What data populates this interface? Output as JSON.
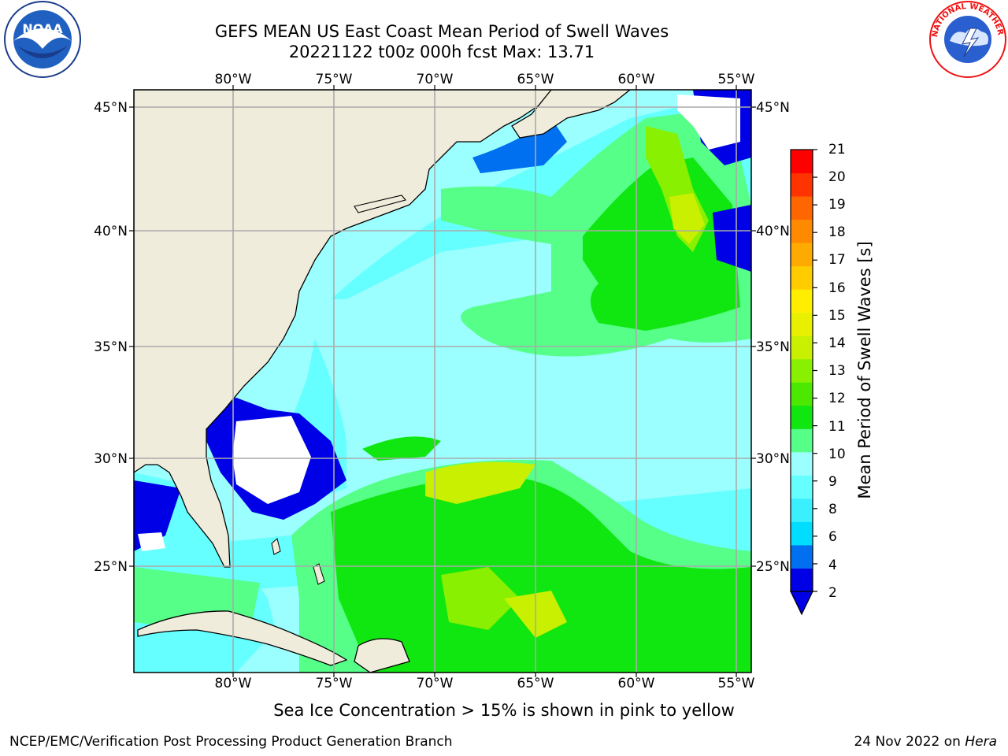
{
  "header": {
    "title_line1": "GEFS MEAN US East Coast Mean Period of Swell Waves",
    "title_line2": "20221122 t00z 000h fcst   Max: 13.71"
  },
  "map": {
    "lon_ticks": [
      "80°W",
      "75°W",
      "70°W",
      "65°W",
      "60°W",
      "55°W"
    ],
    "lat_ticks": [
      "45°N",
      "40°N",
      "35°N",
      "30°N",
      "25°N"
    ],
    "land_color": "#efecdc",
    "water_no_data_color": "#ffffff",
    "grid_color": "#aaaaaa"
  },
  "colorbar": {
    "label": "Mean Period of Swell Waves [s]",
    "ticks": [
      "21",
      "20",
      "19",
      "18",
      "17",
      "16",
      "15",
      "14",
      "13",
      "12",
      "11",
      "10",
      "9",
      "8",
      "6",
      "4",
      "2"
    ],
    "colors": [
      "#0000e6",
      "#0070f0",
      "#00ddff",
      "#3af0ff",
      "#66ffff",
      "#9cffff",
      "#55ff88",
      "#10e610",
      "#4ce800",
      "#88f000",
      "#c8f000",
      "#e8f000",
      "#ffee00",
      "#ffcc00",
      "#ffaa00",
      "#ff8a00",
      "#ff6600",
      "#ff3300",
      "#ff0000"
    ]
  },
  "footer": {
    "footnote": "Sea Ice Concentration > 15% is shown in pink to yellow",
    "credit_left": "NCEP/EMC/Verification Post Processing Product Generation Branch",
    "credit_date": "24 Nov 2022 on ",
    "credit_machine": "Hera"
  },
  "logos": {
    "noaa": "NOAA",
    "nws": "NATIONAL WEATHER SERVICE"
  }
}
